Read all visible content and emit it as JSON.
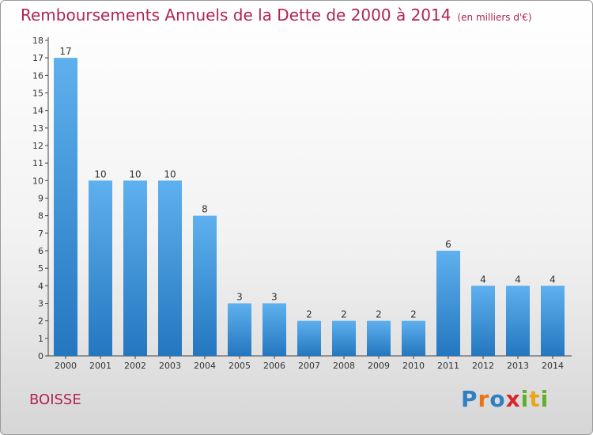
{
  "header": {
    "title": "Remboursements Annuels de la Dette de 2000 à 2014",
    "unit": "(en milliers d'€)"
  },
  "footer": {
    "commune": "BOISSE"
  },
  "logo": {
    "letters": [
      {
        "char": "P",
        "color": "#2f7fc3"
      },
      {
        "char": "r",
        "color": "#e8731a"
      },
      {
        "char": "o",
        "color": "#2f7fc3"
      },
      {
        "char": "x",
        "color": "#d8262c"
      },
      {
        "char": "i",
        "color": "#5fae2e"
      },
      {
        "char": "t",
        "color": "#e8a81a"
      },
      {
        "char": "i",
        "color": "#5fae2e"
      }
    ]
  },
  "colors": {
    "bar_light": "#5eb0ee",
    "bar_dark": "#2477bf",
    "axis": "#444444",
    "text": "#333333",
    "title": "#b02450"
  },
  "chart_data": {
    "type": "bar",
    "title": "Remboursements Annuels de la Dette de 2000 à 2014",
    "xlabel": "",
    "ylabel": "",
    "categories": [
      "2000",
      "2001",
      "2002",
      "2003",
      "2004",
      "2005",
      "2006",
      "2007",
      "2008",
      "2009",
      "2010",
      "2011",
      "2012",
      "2013",
      "2014"
    ],
    "values": [
      17,
      10,
      10,
      10,
      8,
      3,
      3,
      2,
      2,
      2,
      2,
      6,
      4,
      4,
      4
    ],
    "ylim": [
      0,
      18
    ],
    "yticks": [
      0,
      1,
      2,
      3,
      4,
      5,
      6,
      7,
      8,
      9,
      10,
      11,
      12,
      13,
      14,
      15,
      16,
      17,
      18
    ],
    "grid": false,
    "data_labels": true
  }
}
